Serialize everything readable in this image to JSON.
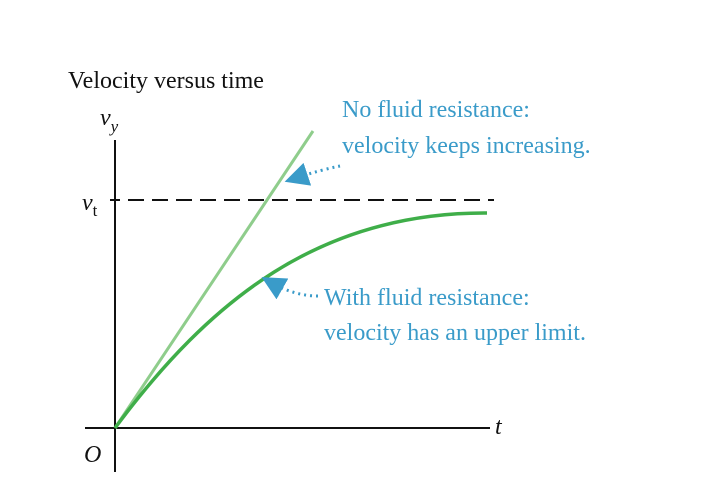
{
  "title": "Velocity versus time",
  "y_axis": {
    "symbol": "v",
    "subscript": "y"
  },
  "x_axis": {
    "symbol": "t"
  },
  "origin": "O",
  "terminal": {
    "symbol": "v",
    "subscript": "t"
  },
  "annotations": [
    {
      "lines": [
        "No fluid resistance:",
        "velocity keeps increasing."
      ]
    },
    {
      "lines": [
        "With fluid resistance:",
        "velocity has an upper limit."
      ]
    }
  ]
}
